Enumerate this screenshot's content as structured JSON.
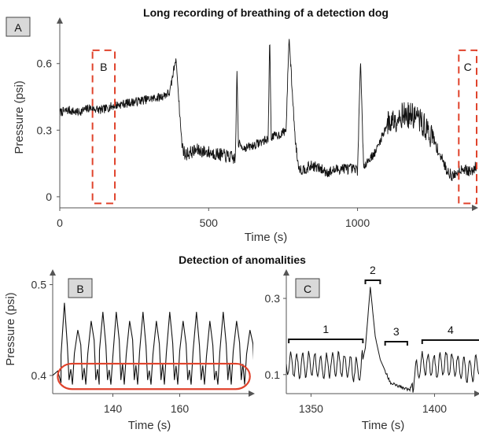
{
  "chart_data": [
    {
      "panel": "A",
      "type": "line",
      "title": "Long recording of breathing of a detection dog",
      "xlabel": "Time (s)",
      "ylabel": "Pressure (psi)",
      "xlim": [
        0,
        1400
      ],
      "ylim": [
        -0.05,
        0.78
      ],
      "x_ticks": [
        0,
        500,
        1000
      ],
      "y_ticks": [
        0,
        0.3,
        0.6
      ],
      "y_tick_labels": [
        "0",
        "0.3",
        "0.6"
      ],
      "series": [
        {
          "x": [
            0,
            30,
            60,
            100,
            140,
            180,
            220,
            260,
            300,
            340,
            370,
            390,
            400,
            410,
            420,
            460,
            500,
            540,
            570,
            590,
            595,
            600,
            620,
            650,
            680,
            700,
            705,
            710,
            740,
            760,
            770,
            790,
            800,
            810,
            850,
            900,
            950,
            1000,
            1010,
            1020,
            1060,
            1100,
            1150,
            1200,
            1250,
            1300,
            1320,
            1350,
            1380,
            1400
          ],
          "y": [
            0.38,
            0.39,
            0.38,
            0.4,
            0.39,
            0.41,
            0.42,
            0.43,
            0.44,
            0.45,
            0.47,
            0.63,
            0.43,
            0.24,
            0.19,
            0.21,
            0.2,
            0.19,
            0.18,
            0.17,
            0.58,
            0.24,
            0.22,
            0.23,
            0.25,
            0.26,
            0.74,
            0.27,
            0.28,
            0.3,
            0.72,
            0.27,
            0.15,
            0.12,
            0.14,
            0.11,
            0.13,
            0.12,
            0.62,
            0.14,
            0.2,
            0.33,
            0.37,
            0.36,
            0.27,
            0.12,
            0.09,
            0.13,
            0.11,
            0.14
          ]
        }
      ],
      "annotations": [
        {
          "label": "B",
          "x_range": [
            110,
            185
          ],
          "color": "#e0432c"
        },
        {
          "label": "C",
          "x_range": [
            1340,
            1400
          ],
          "color": "#e0432c"
        }
      ]
    },
    {
      "panel": "B",
      "type": "line",
      "title": "Detection of anomalities",
      "xlabel": "Time (s)",
      "ylabel": "Pressure (psi)",
      "xlim": [
        122,
        182
      ],
      "ylim": [
        0.38,
        0.51
      ],
      "x_ticks": [
        140,
        160
      ],
      "y_ticks": [
        0.4,
        0.5
      ],
      "y_tick_labels": [
        "0.4",
        "0.5"
      ],
      "series": [
        {
          "peaks_x": [
            125.5,
            129.5,
            133.5,
            137,
            141,
            145,
            149,
            153,
            157,
            161,
            165,
            169,
            173,
            177,
            181
          ],
          "peaks_y": [
            0.48,
            0.45,
            0.46,
            0.47,
            0.47,
            0.46,
            0.47,
            0.46,
            0.47,
            0.46,
            0.47,
            0.46,
            0.47,
            0.46,
            0.45
          ],
          "troughs_y": [
            0.39,
            0.39,
            0.39,
            0.39,
            0.39,
            0.39,
            0.39,
            0.39,
            0.39,
            0.39,
            0.39,
            0.39,
            0.39,
            0.39,
            0.39
          ]
        }
      ],
      "highlight": {
        "x_range": [
          123.5,
          181
        ],
        "y_range": [
          0.385,
          0.413
        ],
        "color": "#e0432c"
      }
    },
    {
      "panel": "C",
      "type": "line",
      "xlabel": "Time (s)",
      "xlim": [
        1340,
        1418
      ],
      "ylim": [
        0.05,
        0.36
      ],
      "x_ticks": [
        1350,
        1400
      ],
      "y_ticks": [
        0.1,
        0.3
      ],
      "y_tick_labels": [
        "0.1",
        "0.3"
      ],
      "series": [
        {
          "x": [
            1340,
            1345,
            1350,
            1355,
            1360,
            1365,
            1370,
            1372,
            1374,
            1376,
            1378,
            1380,
            1382,
            1385,
            1390,
            1392,
            1395,
            1400,
            1405,
            1410,
            1415,
            1418
          ],
          "y": [
            0.13,
            0.12,
            0.13,
            0.12,
            0.13,
            0.12,
            0.11,
            0.17,
            0.33,
            0.2,
            0.14,
            0.11,
            0.08,
            0.07,
            0.06,
            0.1,
            0.13,
            0.12,
            0.13,
            0.12,
            0.11,
            0.13
          ]
        }
      ],
      "segments": [
        {
          "label": "1",
          "x_range": [
            1341,
            1371
          ]
        },
        {
          "label": "2",
          "x_range": [
            1372,
            1378
          ]
        },
        {
          "label": "3",
          "x_range": [
            1380,
            1389
          ]
        },
        {
          "label": "4",
          "x_range": [
            1395,
            1418
          ]
        }
      ]
    }
  ]
}
